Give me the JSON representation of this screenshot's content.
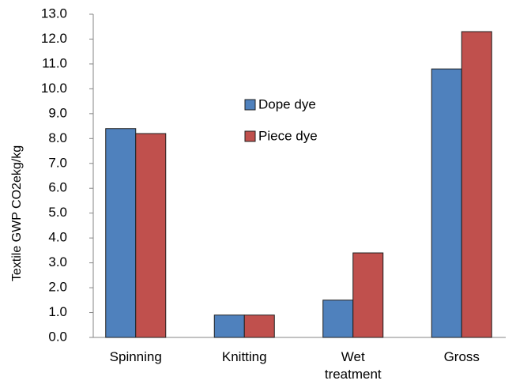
{
  "chart_data": {
    "type": "bar",
    "y_label": "Textile GWP CO2ekg/kg",
    "categories": [
      "Spinning",
      "Knitting",
      "Wet treatment",
      "Gross"
    ],
    "series": [
      {
        "name": "Dope dye",
        "color": "#4f81bd",
        "values": [
          8.4,
          0.9,
          1.5,
          10.8
        ]
      },
      {
        "name": "Piece dye",
        "color": "#c0504d",
        "values": [
          8.2,
          0.9,
          3.4,
          12.3
        ]
      }
    ],
    "ylim": [
      0,
      13
    ],
    "yticks": [
      {
        "value": 0,
        "label": "0.0"
      },
      {
        "value": 1,
        "label": "1.0"
      },
      {
        "value": 2,
        "label": "2.0"
      },
      {
        "value": 3,
        "label": "3.0"
      },
      {
        "value": 4,
        "label": "4.0"
      },
      {
        "value": 5,
        "label": "5.0"
      },
      {
        "value": 6,
        "label": "6.0"
      },
      {
        "value": 7,
        "label": "7.0"
      },
      {
        "value": 8,
        "label": "8.0"
      },
      {
        "value": 9,
        "label": "9.0"
      },
      {
        "value": 10,
        "label": "10.0"
      },
      {
        "value": 11,
        "label": "11.0"
      },
      {
        "value": 12,
        "label": "12.0"
      },
      {
        "value": 13,
        "label": "13.0"
      }
    ],
    "grid": false,
    "legend": "center"
  }
}
